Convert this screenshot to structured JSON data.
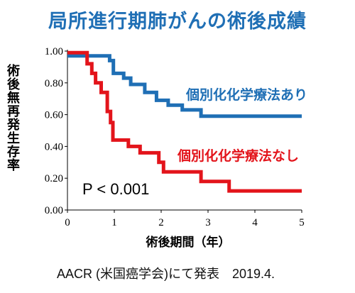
{
  "title": "局所進行期肺がんの術後成績",
  "source": "AACR (米国癌学会)にて発表　2019.4.",
  "chart_data": {
    "type": "line",
    "step": true,
    "xlabel": "術後期間（年）",
    "ylabel": "術後無再発生存率",
    "xlim": [
      0,
      5
    ],
    "ylim": [
      0,
      1
    ],
    "x_ticks": [
      "0",
      "1",
      "2",
      "3",
      "4",
      "5"
    ],
    "y_ticks": [
      "0.00",
      "0.20",
      "0.40",
      "0.60",
      "0.80",
      "1.00"
    ],
    "annotations": [
      {
        "text": "P < 0.001"
      }
    ],
    "series": [
      {
        "name": "個別化化学療法あり",
        "color": "#1f6fb5",
        "points": [
          [
            0,
            0.97
          ],
          [
            0.9,
            0.97
          ],
          [
            0.9,
            0.94
          ],
          [
            0.98,
            0.94
          ],
          [
            0.98,
            0.86
          ],
          [
            1.2,
            0.86
          ],
          [
            1.2,
            0.83
          ],
          [
            1.35,
            0.83
          ],
          [
            1.35,
            0.79
          ],
          [
            1.65,
            0.79
          ],
          [
            1.65,
            0.74
          ],
          [
            1.9,
            0.74
          ],
          [
            1.9,
            0.69
          ],
          [
            2.15,
            0.69
          ],
          [
            2.15,
            0.66
          ],
          [
            2.45,
            0.66
          ],
          [
            2.45,
            0.63
          ],
          [
            2.85,
            0.63
          ],
          [
            2.85,
            0.59
          ],
          [
            5.0,
            0.59
          ]
        ]
      },
      {
        "name": "個別化化学療法なし",
        "color": "#e3141b",
        "points": [
          [
            0,
            0.99
          ],
          [
            0.42,
            0.99
          ],
          [
            0.42,
            0.92
          ],
          [
            0.52,
            0.92
          ],
          [
            0.52,
            0.86
          ],
          [
            0.6,
            0.86
          ],
          [
            0.6,
            0.8
          ],
          [
            0.72,
            0.8
          ],
          [
            0.72,
            0.74
          ],
          [
            0.85,
            0.74
          ],
          [
            0.85,
            0.62
          ],
          [
            0.92,
            0.62
          ],
          [
            0.92,
            0.55
          ],
          [
            0.97,
            0.55
          ],
          [
            0.97,
            0.44
          ],
          [
            1.3,
            0.44
          ],
          [
            1.3,
            0.4
          ],
          [
            1.55,
            0.4
          ],
          [
            1.55,
            0.36
          ],
          [
            1.95,
            0.36
          ],
          [
            1.95,
            0.3
          ],
          [
            2.05,
            0.3
          ],
          [
            2.05,
            0.24
          ],
          [
            2.85,
            0.24
          ],
          [
            2.85,
            0.18
          ],
          [
            3.45,
            0.18
          ],
          [
            3.45,
            0.12
          ],
          [
            5.0,
            0.12
          ]
        ]
      }
    ]
  }
}
